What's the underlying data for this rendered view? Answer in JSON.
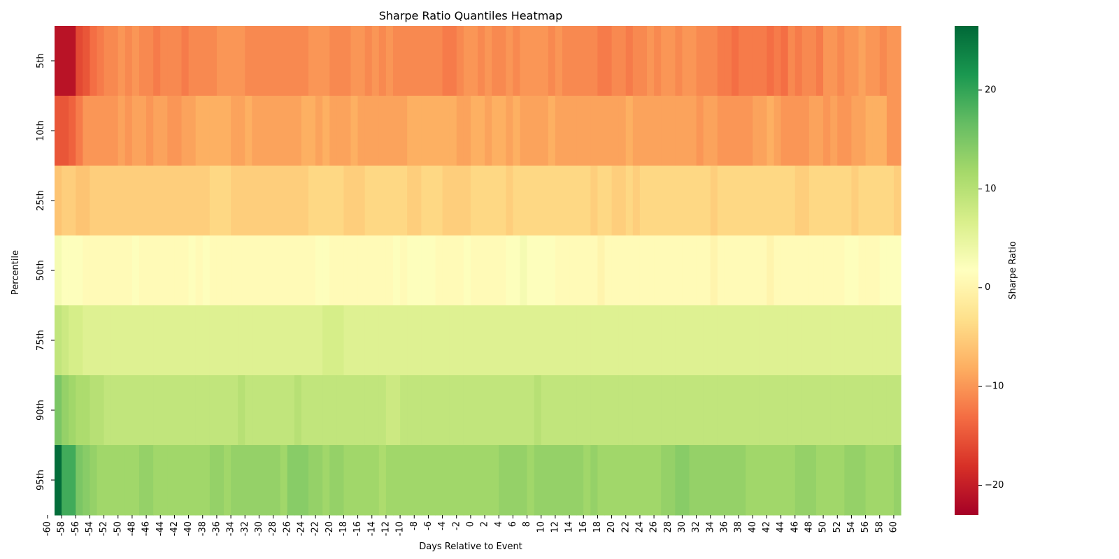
{
  "chart_data": {
    "type": "heatmap",
    "title": "Sharpe Ratio Quantiles Heatmap",
    "xlabel": "Days Relative to Event",
    "ylabel": "Percentile",
    "colorbar_label": "Sharpe Ratio",
    "colormap": "RdYlGn",
    "vmin": -23,
    "vmax": 26.5,
    "colorbar_ticks": [
      {
        "value": 20,
        "label": "20"
      },
      {
        "value": 10,
        "label": "10"
      },
      {
        "value": 0,
        "label": "0"
      },
      {
        "value": -10,
        "label": "−10"
      },
      {
        "value": -20,
        "label": "−20"
      }
    ],
    "rows": [
      "5th",
      "10th",
      "25th",
      "50th",
      "75th",
      "90th",
      "95th"
    ],
    "days": [
      -59,
      60
    ],
    "x_tick_labels": [
      "-60",
      "-58",
      "-56",
      "-54",
      "-52",
      "-50",
      "-48",
      "-46",
      "-44",
      "-42",
      "-40",
      "-38",
      "-36",
      "-34",
      "-32",
      "-30",
      "-28",
      "-26",
      "-24",
      "-22",
      "-20",
      "-18",
      "-16",
      "-14",
      "-12",
      "-10",
      "-8",
      "-6",
      "-4",
      "-2",
      "0",
      "2",
      "4",
      "6",
      "8",
      "10",
      "12",
      "14",
      "16",
      "18",
      "20",
      "22",
      "24",
      "26",
      "28",
      "30",
      "32",
      "34",
      "36",
      "38",
      "40",
      "42",
      "44",
      "46",
      "48",
      "50",
      "52",
      "54",
      "56",
      "58",
      "60"
    ],
    "x_tick_values": [
      -60,
      -58,
      -56,
      -54,
      -52,
      -50,
      -48,
      -46,
      -44,
      -42,
      -40,
      -38,
      -36,
      -34,
      -32,
      -30,
      -28,
      -26,
      -24,
      -22,
      -20,
      -18,
      -16,
      -14,
      -12,
      -10,
      -8,
      -6,
      -4,
      -2,
      0,
      2,
      4,
      6,
      8,
      10,
      12,
      14,
      16,
      18,
      20,
      22,
      24,
      26,
      28,
      30,
      32,
      34,
      36,
      38,
      40,
      42,
      44,
      46,
      48,
      50,
      52,
      54,
      56,
      58,
      60
    ],
    "values": [
      [
        -21,
        -21,
        -21,
        -16,
        -15,
        -13,
        -12,
        -11,
        -11,
        -10,
        -11,
        -10,
        -11,
        -11,
        -12,
        -11,
        -11,
        -11,
        -12,
        -11,
        -11,
        -11,
        -11,
        -10,
        -10,
        -10,
        -10,
        -11,
        -11,
        -11,
        -11,
        -11,
        -11,
        -11,
        -11,
        -11,
        -10,
        -10,
        -10,
        -11,
        -11,
        -11,
        -10,
        -10,
        -11,
        -10,
        -11,
        -10,
        -11,
        -11,
        -11,
        -11,
        -11,
        -11,
        -11,
        -12,
        -12,
        -11,
        -10,
        -10,
        -11,
        -10,
        -11,
        -11,
        -10,
        -11,
        -10,
        -10,
        -10,
        -10,
        -11,
        -10,
        -11,
        -11,
        -11,
        -11,
        -11,
        -12,
        -12,
        -11,
        -11,
        -12,
        -11,
        -11,
        -10,
        -11,
        -10,
        -10,
        -11,
        -10,
        -10,
        -11,
        -11,
        -11,
        -12,
        -12,
        -13,
        -12,
        -12,
        -12,
        -12,
        -13,
        -12,
        -13,
        -11,
        -12,
        -11,
        -11,
        -12,
        -10,
        -10,
        -11,
        -10,
        -10,
        -9,
        -10,
        -10,
        -11,
        -10,
        -10
      ],
      [
        -15,
        -15,
        -14,
        -12,
        -10,
        -10,
        -10,
        -10,
        -10,
        -9,
        -10,
        -9,
        -9,
        -10,
        -9,
        -9,
        -10,
        -10,
        -9,
        -9,
        -8,
        -8,
        -8,
        -8,
        -8,
        -9,
        -9,
        -8,
        -9,
        -9,
        -9,
        -9,
        -9,
        -9,
        -9,
        -8,
        -8,
        -9,
        -8,
        -9,
        -9,
        -9,
        -8,
        -9,
        -9,
        -9,
        -9,
        -9,
        -9,
        -9,
        -8,
        -8,
        -8,
        -8,
        -8,
        -8,
        -8,
        -9,
        -9,
        -8,
        -8,
        -9,
        -8,
        -8,
        -9,
        -8,
        -9,
        -9,
        -9,
        -9,
        -8,
        -9,
        -9,
        -9,
        -9,
        -9,
        -9,
        -9,
        -9,
        -9,
        -9,
        -8,
        -9,
        -9,
        -9,
        -9,
        -9,
        -9,
        -9,
        -9,
        -9,
        -10,
        -9,
        -9,
        -10,
        -10,
        -10,
        -10,
        -10,
        -9,
        -9,
        -8,
        -9,
        -10,
        -10,
        -10,
        -10,
        -9,
        -9,
        -10,
        -9,
        -10,
        -10,
        -9,
        -9,
        -8,
        -8,
        -8,
        -10,
        -10
      ],
      [
        -6,
        -5,
        -5,
        -6,
        -6,
        -5,
        -5,
        -5,
        -5,
        -5,
        -5,
        -5,
        -5,
        -5,
        -5,
        -5,
        -5,
        -5,
        -5,
        -5,
        -5,
        -5,
        -4,
        -4,
        -4,
        -5,
        -5,
        -5,
        -5,
        -5,
        -5,
        -5,
        -5,
        -5,
        -5,
        -5,
        -4,
        -4,
        -4,
        -4,
        -4,
        -5,
        -5,
        -5,
        -4,
        -4,
        -4,
        -4,
        -4,
        -4,
        -5,
        -5,
        -4,
        -4,
        -4,
        -5,
        -5,
        -5,
        -5,
        -4,
        -4,
        -4,
        -4,
        -4,
        -5,
        -4,
        -4,
        -4,
        -4,
        -4,
        -4,
        -4,
        -4,
        -4,
        -4,
        -4,
        -5,
        -4,
        -4,
        -5,
        -5,
        -4,
        -5,
        -4,
        -4,
        -4,
        -4,
        -4,
        -4,
        -4,
        -4,
        -4,
        -4,
        -5,
        -4,
        -4,
        -4,
        -4,
        -4,
        -4,
        -4,
        -4,
        -4,
        -4,
        -4,
        -5,
        -5,
        -4,
        -4,
        -4,
        -4,
        -4,
        -4,
        -5,
        -4,
        -4,
        -4,
        -4,
        -4,
        -5
      ],
      [
        3,
        2,
        2,
        2,
        1,
        1,
        1,
        1,
        1,
        1,
        1,
        2,
        1,
        1,
        1,
        1,
        1,
        1,
        1,
        2,
        1,
        2,
        1,
        1,
        1,
        1,
        1,
        1,
        1,
        1,
        1,
        1,
        1,
        1,
        1,
        1,
        1,
        2,
        2,
        1,
        1,
        1,
        1,
        1,
        1,
        1,
        1,
        1,
        2,
        1,
        2,
        2,
        2,
        2,
        1,
        1,
        1,
        1,
        2,
        1,
        1,
        1,
        1,
        1,
        2,
        2,
        3,
        2,
        2,
        2,
        2,
        1,
        1,
        1,
        1,
        1,
        1,
        0,
        1,
        1,
        1,
        1,
        1,
        1,
        1,
        1,
        1,
        1,
        1,
        1,
        1,
        1,
        1,
        0,
        1,
        1,
        1,
        1,
        1,
        1,
        1,
        0,
        1,
        1,
        1,
        1,
        1,
        1,
        1,
        1,
        1,
        1,
        2,
        2,
        1,
        1,
        1,
        2,
        2,
        2
      ],
      [
        9,
        8,
        7,
        7,
        6,
        6,
        6,
        6,
        6,
        6,
        6,
        6,
        6,
        6,
        6,
        6,
        6,
        6,
        6,
        6,
        6,
        6,
        6,
        6,
        6,
        6,
        6,
        6,
        6,
        6,
        6,
        6,
        6,
        6,
        6,
        6,
        6,
        6,
        7,
        7,
        7,
        6,
        6,
        6,
        6,
        6,
        6,
        6,
        6,
        6,
        6,
        6,
        6,
        6,
        6,
        6,
        6,
        6,
        6,
        6,
        6,
        6,
        6,
        6,
        6,
        6,
        6,
        6,
        6,
        6,
        6,
        6,
        6,
        6,
        6,
        6,
        6,
        6,
        6,
        6,
        6,
        6,
        6,
        6,
        6,
        6,
        6,
        6,
        6,
        6,
        6,
        6,
        6,
        6,
        6,
        6,
        6,
        6,
        6,
        6,
        6,
        6,
        6,
        6,
        6,
        6,
        6,
        6,
        6,
        6,
        6,
        6,
        6,
        6,
        6,
        6,
        6,
        6,
        6,
        6
      ],
      [
        15,
        13,
        12,
        11,
        11,
        10,
        10,
        9,
        9,
        9,
        9,
        9,
        9,
        9,
        9,
        9,
        9,
        9,
        9,
        9,
        9,
        9,
        9,
        9,
        9,
        9,
        10,
        9,
        9,
        9,
        9,
        9,
        9,
        9,
        10,
        9,
        9,
        9,
        9,
        9,
        9,
        9,
        9,
        9,
        9,
        9,
        9,
        8,
        8,
        9,
        9,
        9,
        9,
        9,
        9,
        9,
        9,
        9,
        9,
        9,
        9,
        9,
        9,
        9,
        9,
        9,
        9,
        9,
        10,
        9,
        9,
        9,
        9,
        9,
        9,
        9,
        9,
        9,
        9,
        9,
        9,
        9,
        9,
        9,
        9,
        9,
        9,
        9,
        9,
        9,
        9,
        9,
        9,
        9,
        9,
        9,
        9,
        9,
        9,
        9,
        9,
        9,
        9,
        9,
        9,
        9,
        9,
        9,
        9,
        9,
        9,
        9,
        9,
        9,
        9,
        9,
        9,
        9,
        9,
        9
      ],
      [
        26,
        19,
        19,
        15,
        14,
        13,
        12,
        12,
        12,
        12,
        12,
        12,
        13,
        13,
        12,
        12,
        12,
        12,
        12,
        12,
        12,
        12,
        13,
        13,
        12,
        13,
        13,
        13,
        13,
        13,
        13,
        13,
        12,
        14,
        14,
        14,
        13,
        13,
        12,
        13,
        13,
        12,
        12,
        12,
        12,
        12,
        11,
        12,
        12,
        12,
        12,
        12,
        12,
        12,
        12,
        12,
        12,
        12,
        12,
        12,
        12,
        12,
        12,
        13,
        13,
        13,
        13,
        12,
        13,
        13,
        13,
        13,
        13,
        13,
        13,
        12,
        13,
        12,
        12,
        12,
        12,
        12,
        12,
        12,
        12,
        12,
        13,
        13,
        14,
        14,
        13,
        13,
        13,
        13,
        13,
        13,
        13,
        13,
        12,
        12,
        12,
        12,
        12,
        12,
        12,
        13,
        13,
        13,
        12,
        12,
        12,
        12,
        13,
        13,
        13,
        12,
        12,
        12,
        12,
        13
      ]
    ]
  }
}
